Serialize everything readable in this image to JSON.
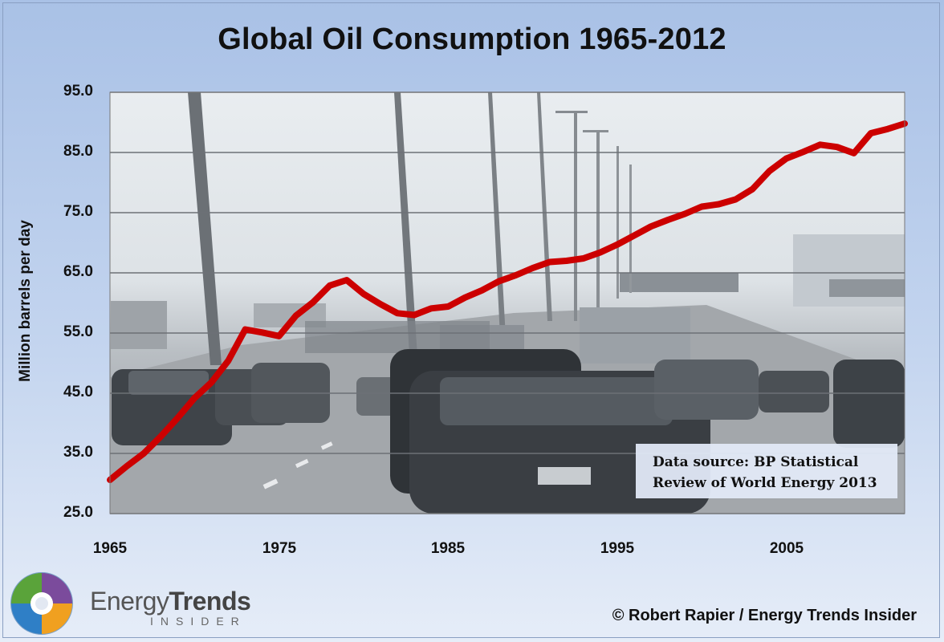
{
  "chart_data": {
    "type": "line",
    "title": "Global Oil Consumption 1965-2012",
    "ylabel": "Million barrels per day",
    "xlabel": "",
    "xlim": [
      1965,
      2012
    ],
    "ylim": [
      25,
      95
    ],
    "y_ticks": [
      "25.0",
      "35.0",
      "45.0",
      "55.0",
      "65.0",
      "75.0",
      "85.0",
      "95.0"
    ],
    "x_ticks": [
      "1965",
      "1975",
      "1985",
      "1995",
      "2005"
    ],
    "grid": "horizontal",
    "series": [
      {
        "color": "#cc0000",
        "x": [
          1965,
          1966,
          1967,
          1968,
          1969,
          1970,
          1971,
          1972,
          1973,
          1974,
          1975,
          1976,
          1977,
          1978,
          1979,
          1980,
          1981,
          1982,
          1983,
          1984,
          1985,
          1986,
          1987,
          1988,
          1989,
          1990,
          1991,
          1992,
          1993,
          1994,
          1995,
          1996,
          1997,
          1998,
          1999,
          2000,
          2001,
          2002,
          2003,
          2004,
          2005,
          2006,
          2007,
          2008,
          2009,
          2010,
          2011,
          2012
        ],
        "y": [
          30.6,
          32.9,
          35.0,
          37.8,
          40.9,
          44.2,
          46.8,
          50.4,
          55.6,
          55.1,
          54.5,
          57.9,
          60.1,
          62.9,
          63.8,
          61.5,
          59.8,
          58.3,
          58.0,
          59.1,
          59.4,
          60.9,
          62.1,
          63.6,
          64.6,
          65.8,
          66.8,
          67.0,
          67.4,
          68.4,
          69.7,
          71.2,
          72.7,
          73.8,
          74.8,
          76.0,
          76.4,
          77.2,
          78.9,
          81.9,
          84.0,
          85.1,
          86.3,
          85.9,
          84.9,
          88.2,
          88.9,
          89.8
        ]
      }
    ],
    "annotation": [
      "Data source: BP Statistical",
      "Review of World Energy 2013"
    ]
  },
  "brand": {
    "name_light": "Energy",
    "name_bold": "Trends",
    "tagline": "INSIDER"
  },
  "copyright": "© Robert Rapier / Energy Trends Insider",
  "colors": {
    "line": "#cc0000",
    "background": "#b8cbea"
  }
}
